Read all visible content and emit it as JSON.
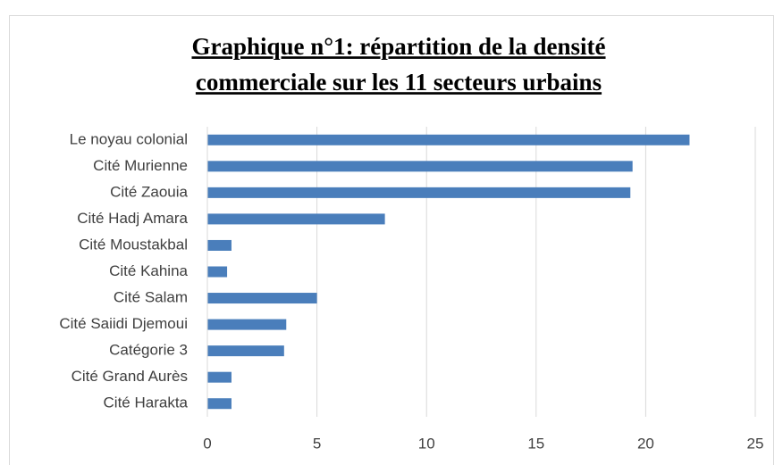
{
  "chart_data": {
    "type": "bar",
    "orientation": "horizontal",
    "title": [
      "Graphique n°1: répartition de la densité",
      "commerciale sur les 11 secteurs urbains"
    ],
    "categories": [
      "Le noyau colonial",
      "Cité Murienne",
      "Cité Zaouia",
      "Cité Hadj Amara",
      "Cité Moustakbal",
      "Cité Kahina",
      "Cité Salam",
      "Cité Saiidi Djemoui",
      "Catégorie 3",
      "Cité Grand Aurès",
      "Cité Harakta"
    ],
    "values": [
      22,
      19.4,
      19.3,
      8.1,
      1.1,
      0.9,
      5,
      3.6,
      3.5,
      1.1,
      1.1
    ],
    "color": "#4a7ebb",
    "xlim": [
      0,
      25
    ],
    "xticks": [
      0,
      5,
      10,
      15,
      20,
      25
    ],
    "grid": true
  }
}
